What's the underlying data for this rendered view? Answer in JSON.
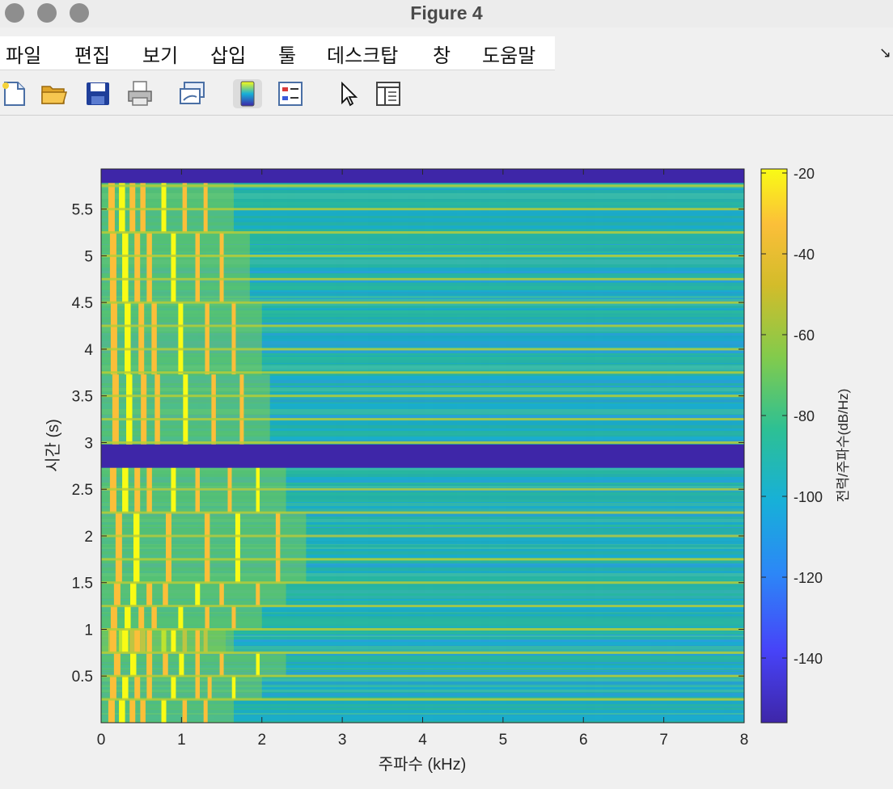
{
  "window": {
    "title": "Figure 4"
  },
  "menu": {
    "items": [
      "파일",
      "편집",
      "보기",
      "삽입",
      "툴",
      "데스크탑",
      "창",
      "도움말"
    ],
    "corner_icon": "dock-arrow-icon"
  },
  "toolbar": {
    "buttons": [
      {
        "icon": "new-figure-icon"
      },
      {
        "icon": "open-folder-icon"
      },
      {
        "icon": "save-icon"
      },
      {
        "icon": "print-icon"
      },
      {
        "icon": "link-plot-icon"
      },
      {
        "icon": "insert-colorbar-icon",
        "active": true
      },
      {
        "icon": "insert-legend-icon"
      },
      {
        "icon": "pointer-icon"
      },
      {
        "icon": "property-inspector-icon"
      }
    ]
  },
  "chart_data": {
    "type": "heatmap",
    "title": "",
    "xlabel": "주파수 (kHz)",
    "ylabel": "시간 (s)",
    "xlim": [
      0,
      8
    ],
    "ylim": [
      0,
      5.93
    ],
    "xticks": [
      0,
      1,
      2,
      3,
      4,
      5,
      6,
      7,
      8
    ],
    "xtick_labels": [
      "0",
      "1",
      "2",
      "3",
      "4",
      "5",
      "6",
      "7",
      "8"
    ],
    "yticks": [
      0.5,
      1,
      1.5,
      2,
      2.5,
      3,
      3.5,
      4,
      4.5,
      5,
      5.5
    ],
    "ytick_labels": [
      "0.5",
      "1",
      "1.5",
      "2",
      "2.5",
      "3",
      "3.5",
      "4",
      "4.5",
      "5",
      "5.5"
    ],
    "colorbar": {
      "label": "전력/주파수(dB/Hz)",
      "range": [
        -156,
        -19
      ],
      "ticks": [
        -20,
        -40,
        -60,
        -80,
        -100,
        -120,
        -140
      ],
      "tick_labels": [
        "-20",
        "-40",
        "-60",
        "-80",
        "-100",
        "-120",
        "-140"
      ],
      "colormap": [
        "#3e26a8",
        "#4743f8",
        "#2c87f7",
        "#17b0d8",
        "#2dc094",
        "#82cb4c",
        "#d3bc2a",
        "#fbbf39",
        "#f9fb15"
      ]
    },
    "silent_intervals_s": [
      [
        2.73,
        2.98
      ],
      [
        5.78,
        5.93
      ]
    ],
    "segments": [
      {
        "t0": 0.0,
        "t1": 0.25,
        "tones_khz": [
          0.13,
          0.26,
          0.39,
          0.52,
          0.78,
          1.04,
          1.3
        ]
      },
      {
        "t0": 0.25,
        "t1": 0.5,
        "tones_khz": [
          0.15,
          0.3,
          0.45,
          0.6,
          0.9,
          1.2,
          1.35,
          1.65
        ]
      },
      {
        "t0": 0.5,
        "t1": 0.75,
        "tones_khz": [
          0.2,
          0.4,
          0.6,
          0.8,
          1.0,
          1.2,
          1.5,
          1.95
        ]
      },
      {
        "t0": 0.75,
        "t1": 1.0,
        "tones_khz": [
          0.13,
          0.26,
          0.39,
          0.52,
          0.78,
          1.04,
          1.3
        ]
      },
      {
        "t0": 0.75,
        "t1": 1.0,
        "tones_khz": [
          0.15,
          0.3,
          0.45,
          0.6,
          0.9,
          1.2
        ]
      },
      {
        "t0": 1.0,
        "t1": 1.25,
        "tones_khz": [
          0.16,
          0.33,
          0.5,
          0.66,
          0.99,
          1.32,
          1.65
        ]
      },
      {
        "t0": 1.25,
        "t1": 1.5,
        "tones_khz": [
          0.2,
          0.4,
          0.6,
          0.8,
          1.2,
          1.5,
          1.95
        ]
      },
      {
        "t0": 1.5,
        "t1": 2.25,
        "tones_khz": [
          0.22,
          0.44,
          0.84,
          1.32,
          1.7,
          2.2
        ]
      },
      {
        "t0": 2.25,
        "t1": 2.73,
        "tones_khz": [
          0.15,
          0.3,
          0.45,
          0.6,
          0.9,
          1.2,
          1.6,
          1.95
        ]
      },
      {
        "t0": 2.98,
        "t1": 3.73,
        "tones_khz": [
          0.18,
          0.35,
          0.53,
          0.7,
          1.05,
          1.4,
          1.75
        ]
      },
      {
        "t0": 3.73,
        "t1": 4.5,
        "tones_khz": [
          0.16,
          0.33,
          0.5,
          0.66,
          0.99,
          1.32,
          1.65
        ]
      },
      {
        "t0": 4.5,
        "t1": 5.25,
        "tones_khz": [
          0.15,
          0.3,
          0.45,
          0.6,
          0.9,
          1.2,
          1.5
        ]
      },
      {
        "t0": 5.25,
        "t1": 5.78,
        "tones_khz": [
          0.13,
          0.26,
          0.39,
          0.52,
          0.78,
          1.04,
          1.3
        ]
      }
    ]
  }
}
